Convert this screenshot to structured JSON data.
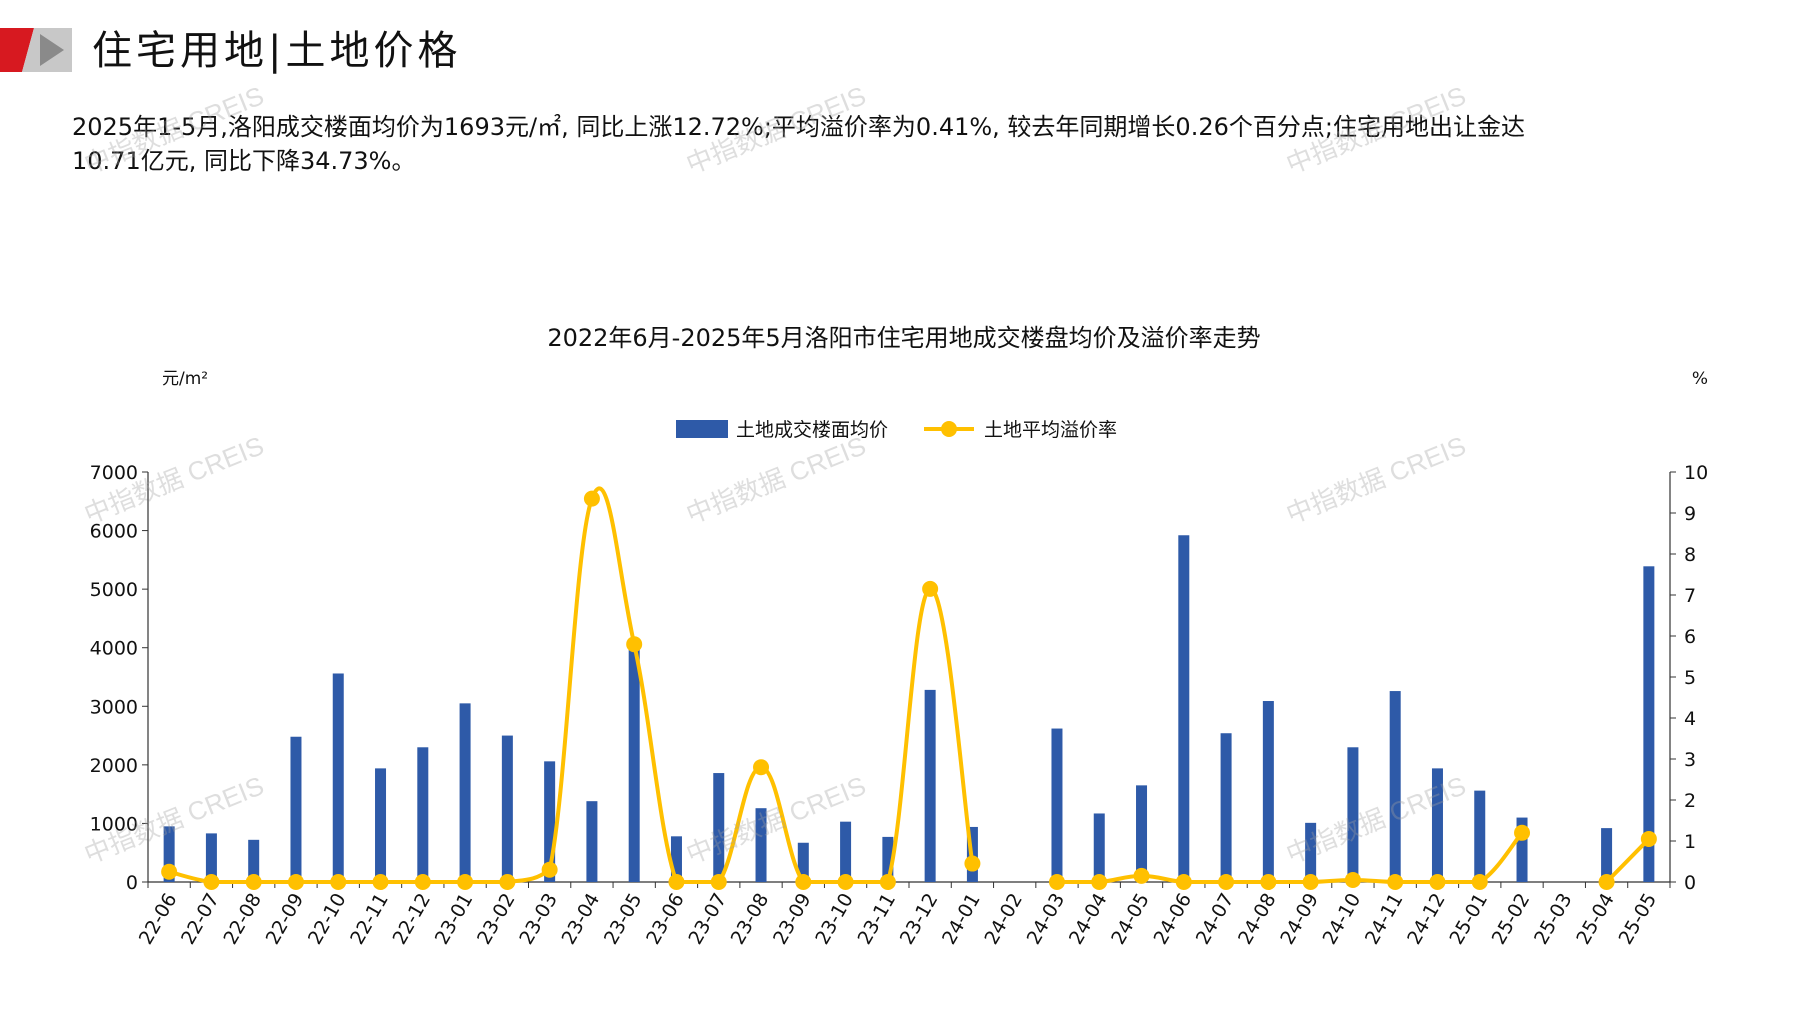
{
  "header": {
    "title": "住宅用地|土地价格"
  },
  "summary": {
    "line1": "2025年1-5月,洛阳成交楼面均价为1693元/㎡, 同比上涨12.72%;平均溢价率为0.41%, 较去年同期增长0.26个百分点;住宅用地出让金达",
    "line2": "10.71亿元, 同比下降34.73%。"
  },
  "watermark_text": "中指数据 CREIS",
  "colors": {
    "bar": "#2E5AA8",
    "line": "#FFC000",
    "brand_red": "#D71920",
    "brand_gray": "#C8C8C8"
  },
  "chart_data": {
    "type": "bar",
    "title": "2022年6月-2025年5月洛阳市住宅用地成交楼盘均价及溢价率走势",
    "left_unit": "元/m²",
    "right_unit": "%",
    "legend_position": "top-center",
    "categories": [
      "22-06",
      "22-07",
      "22-08",
      "22-09",
      "22-10",
      "22-11",
      "22-12",
      "23-01",
      "23-02",
      "23-03",
      "23-04",
      "23-05",
      "23-06",
      "23-07",
      "23-08",
      "23-09",
      "23-10",
      "23-11",
      "23-12",
      "24-01",
      "24-02",
      "24-03",
      "24-04",
      "24-05",
      "24-06",
      "24-07",
      "24-08",
      "24-09",
      "24-10",
      "24-11",
      "24-12",
      "25-01",
      "25-02",
      "25-03",
      "25-04",
      "25-05"
    ],
    "y_left": {
      "min": 0,
      "max": 7000,
      "ticks": [
        0,
        1000,
        2000,
        3000,
        4000,
        5000,
        6000,
        7000
      ]
    },
    "y_right": {
      "min": 0,
      "max": 10,
      "ticks": [
        0,
        1,
        2,
        3,
        4,
        5,
        6,
        7,
        8,
        9,
        10
      ]
    },
    "series": [
      {
        "name": "土地成交楼面均价",
        "type": "bar",
        "axis": "left",
        "values": [
          950,
          830,
          720,
          2480,
          3560,
          1940,
          2300,
          3050,
          2500,
          2060,
          1380,
          4000,
          780,
          1860,
          1260,
          670,
          1030,
          770,
          3280,
          940,
          null,
          2620,
          1170,
          1650,
          5920,
          2540,
          3090,
          1010,
          2300,
          3260,
          1940,
          1560,
          1100,
          null,
          920,
          5390
        ]
      },
      {
        "name": "土地平均溢价率",
        "type": "line",
        "axis": "right",
        "values": [
          0.25,
          0,
          0,
          0,
          0,
          0,
          0,
          0,
          0,
          0.3,
          9.35,
          5.8,
          0,
          0,
          2.8,
          0,
          0,
          0,
          7.15,
          0.45,
          null,
          0,
          0,
          0.15,
          0,
          0,
          0,
          0,
          0.05,
          0,
          0,
          0,
          1.2,
          null,
          0,
          1.05
        ]
      }
    ]
  }
}
